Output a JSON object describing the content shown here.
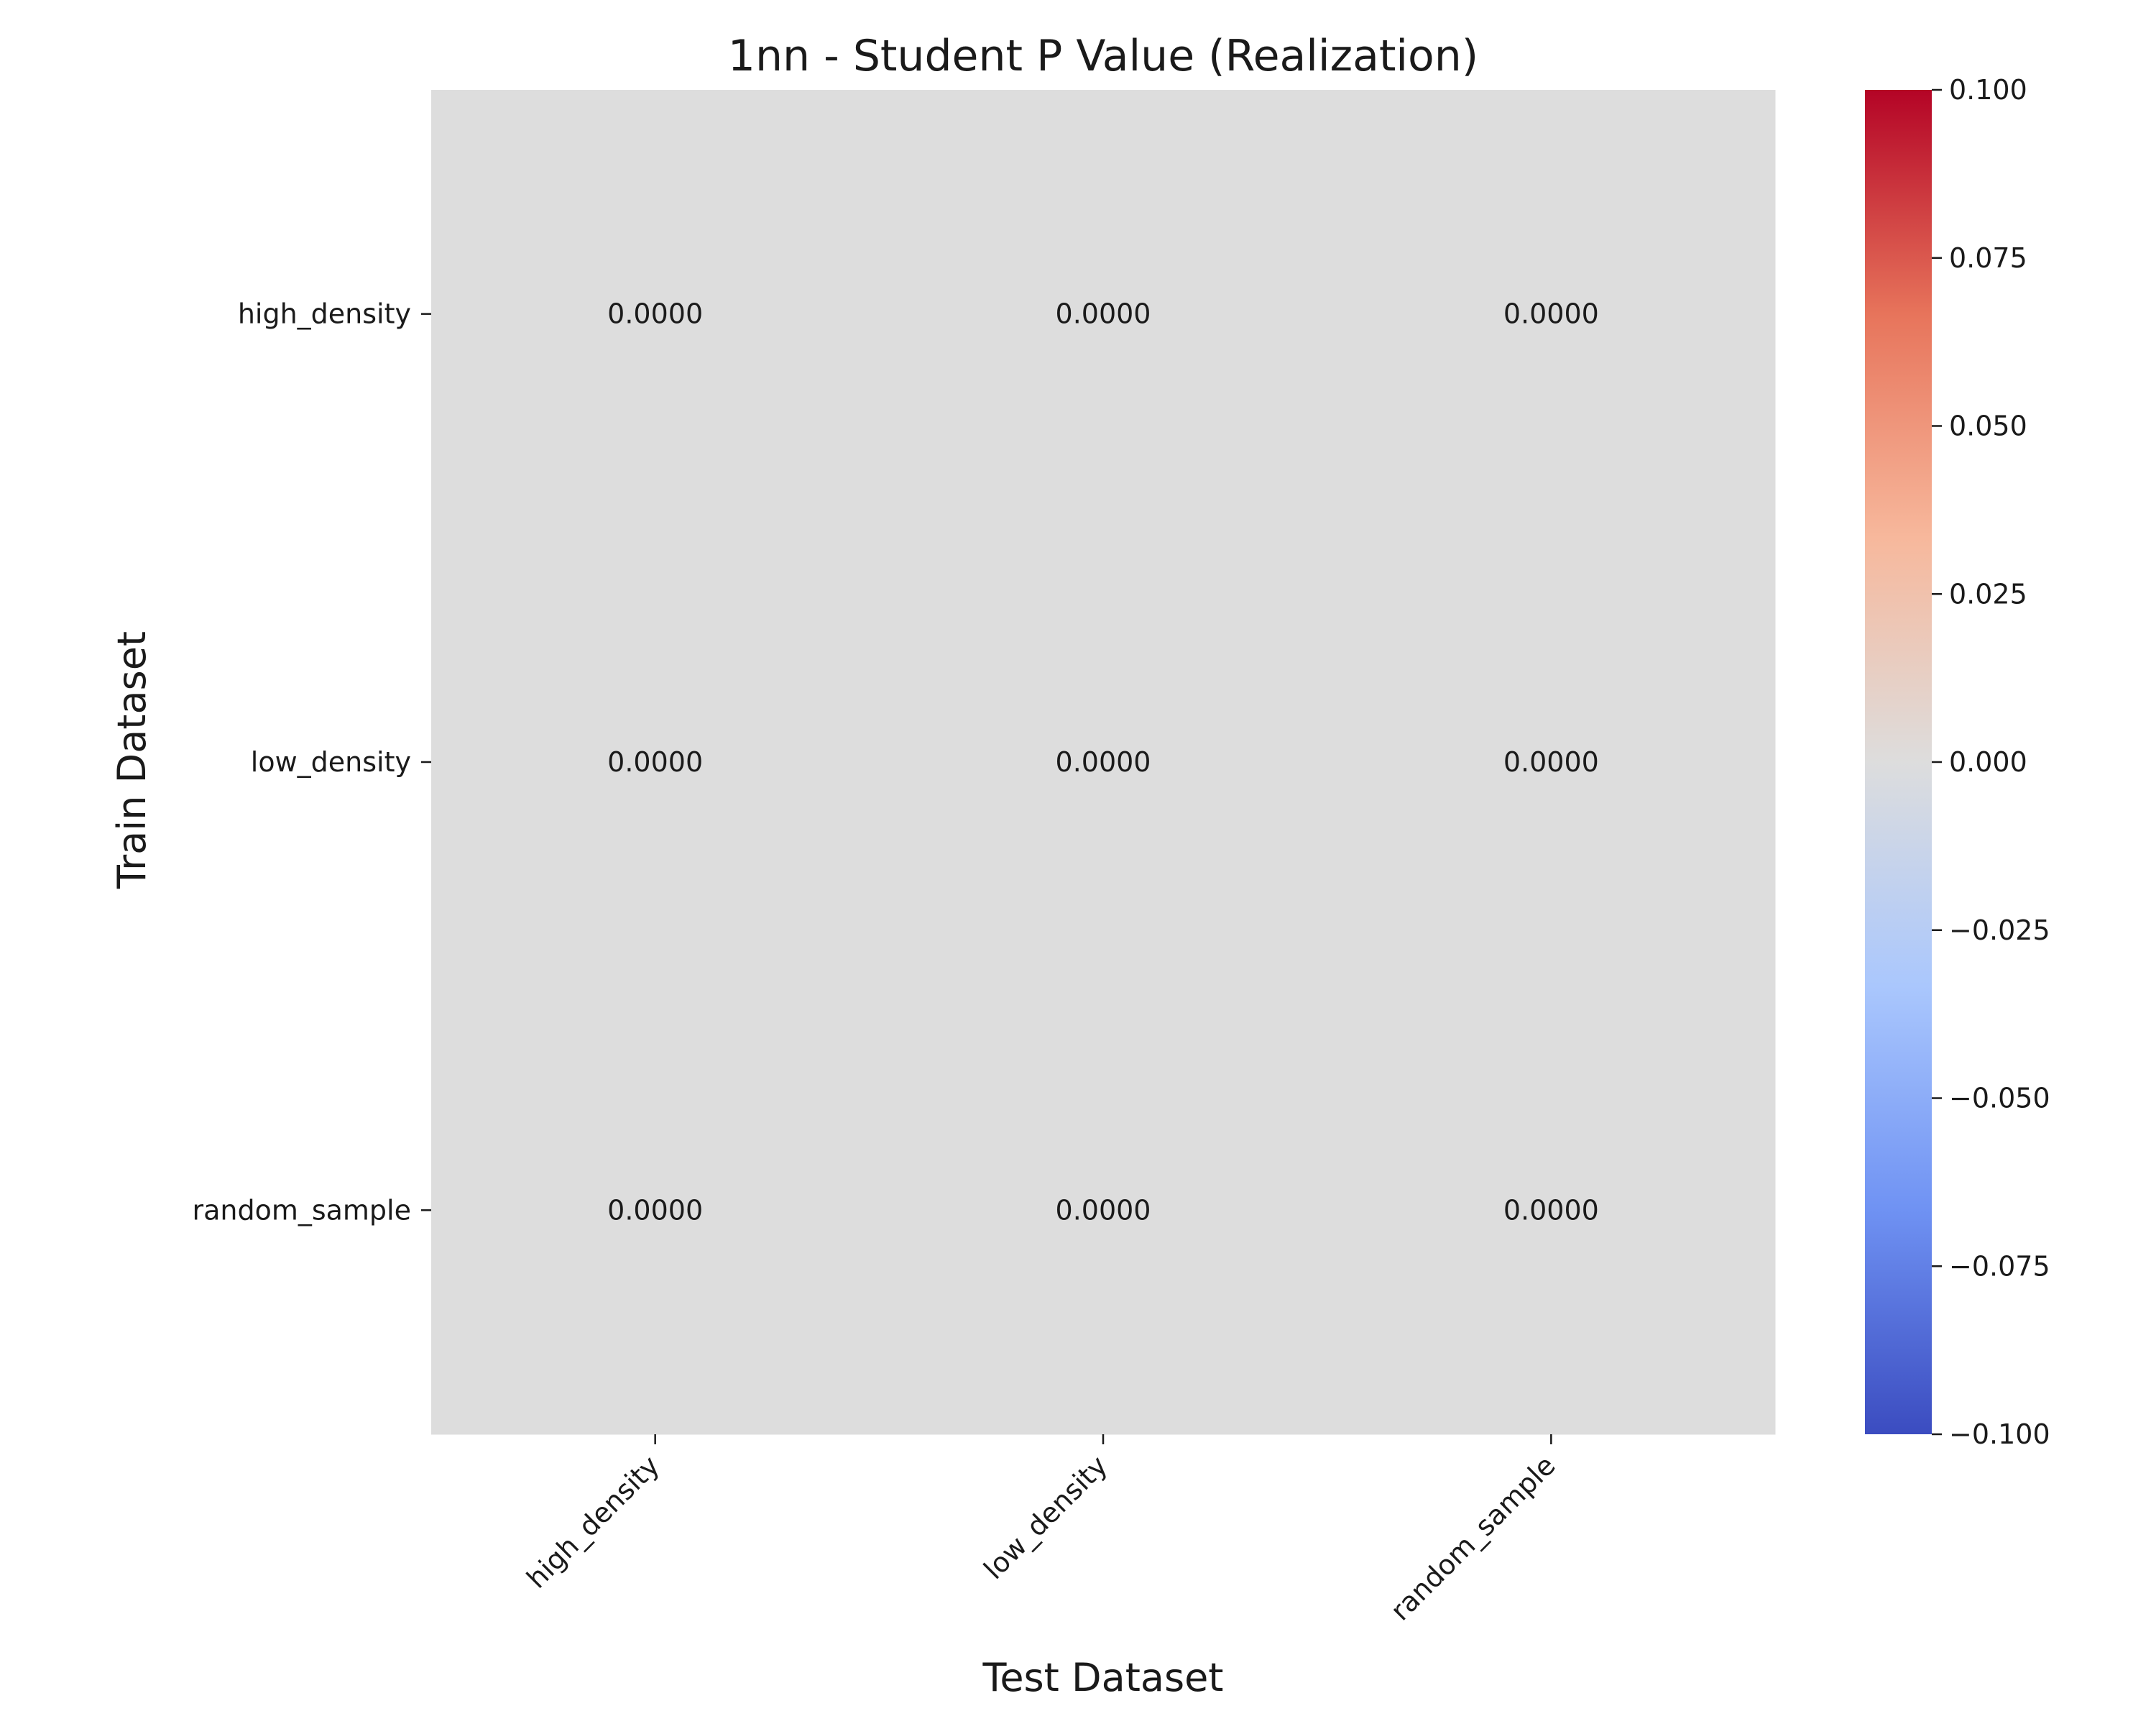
{
  "chart_data": {
    "type": "heatmap",
    "title": "1nn - Student P Value (Realization)",
    "xlabel": "Test Dataset",
    "ylabel": "Train Dataset",
    "x_categories": [
      "high_density",
      "low_density",
      "random_sample"
    ],
    "y_categories": [
      "high_density",
      "low_density",
      "random_sample"
    ],
    "values": [
      [
        0.0,
        0.0,
        0.0
      ],
      [
        0.0,
        0.0,
        0.0
      ],
      [
        0.0,
        0.0,
        0.0
      ]
    ],
    "cell_labels": [
      [
        "0.0000",
        "0.0000",
        "0.0000"
      ],
      [
        "0.0000",
        "0.0000",
        "0.0000"
      ],
      [
        "0.0000",
        "0.0000",
        "0.0000"
      ]
    ],
    "colormap": "coolwarm",
    "colorbar": {
      "range": [
        -0.1,
        0.1
      ],
      "ticks": [
        0.1,
        0.075,
        0.05,
        0.025,
        0.0,
        -0.025,
        -0.05,
        -0.075,
        -0.1
      ],
      "tick_labels": [
        "0.100",
        "0.075",
        "0.050",
        "0.025",
        "0.000",
        "−0.025",
        "−0.050",
        "−0.075",
        "−0.100"
      ],
      "colors": [
        "#3b4cc0",
        "#6f92f3",
        "#aac7fd",
        "#dddddd",
        "#f7b89c",
        "#e7745b",
        "#b40426"
      ]
    },
    "cell_color": "#dddddd",
    "grid": false,
    "legend": "colorbar-right"
  }
}
